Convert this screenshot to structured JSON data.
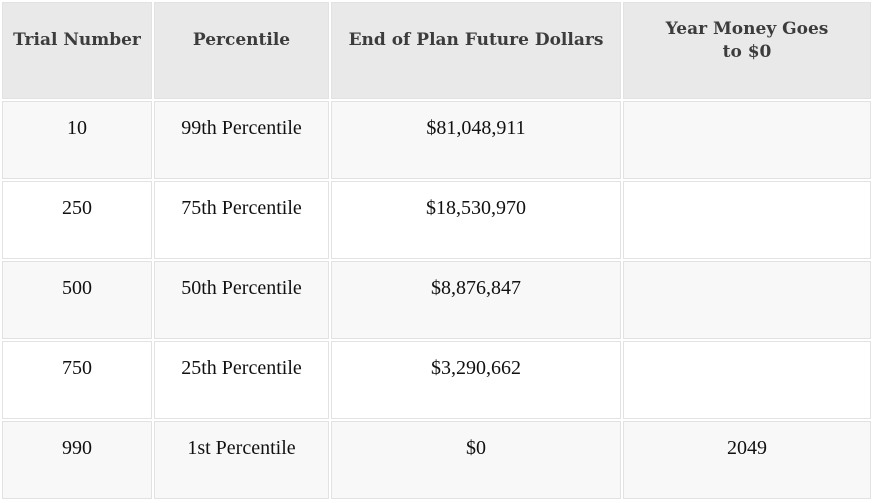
{
  "style": {
    "header_bg": "#e9e9e9",
    "row_stripe_bg": "#f8f8f8",
    "row_alt_bg": "#ffffff",
    "border_color": "#e2e2e2",
    "header_text_color": "#3c3c3c",
    "body_text_color": "#111111",
    "page_bg": "#ffffff"
  },
  "chart_data": {
    "type": "table",
    "title": "",
    "columns": [
      "Trial Number",
      "Percentile",
      "End of Plan Future Dollars",
      "Year Money Goes to $0"
    ],
    "rows": [
      [
        "10",
        "99th Percentile",
        "$81,048,911",
        ""
      ],
      [
        "250",
        "75th Percentile",
        "$18,530,970",
        ""
      ],
      [
        "500",
        "50th Percentile",
        "$8,876,847",
        ""
      ],
      [
        "750",
        "25th Percentile",
        "$3,290,662",
        ""
      ],
      [
        "990",
        "1st Percentile",
        "$0",
        "2049"
      ]
    ],
    "layout_hints": {
      "striped_rows": "odd rows shaded",
      "alignment": "center",
      "header_wrap": "last column header wraps to two lines"
    }
  }
}
